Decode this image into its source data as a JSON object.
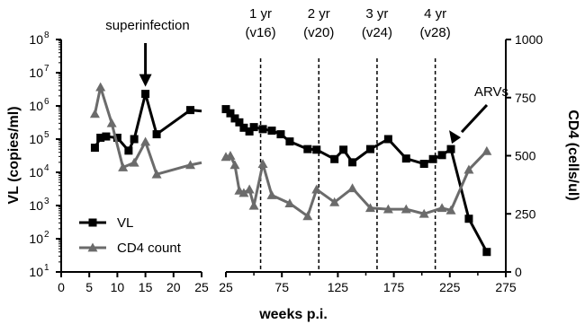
{
  "chart_data": {
    "type": "line",
    "xlabel": "weeks p.i.",
    "ylabel_left": "VL (copies/ml)",
    "ylabel_right": "CD4 (cells/ul)",
    "x_segment1": {
      "range": [
        0,
        25
      ],
      "ticks": [
        "0",
        "5",
        "10",
        "15",
        "20",
        "25"
      ]
    },
    "x_segment2": {
      "range": [
        25,
        275
      ],
      "ticks": [
        "25",
        "75",
        "125",
        "175",
        "225",
        "275"
      ]
    },
    "y_left": {
      "scale": "log",
      "range": [
        10,
        100000000
      ],
      "ticks": [
        "10",
        "10",
        "10",
        "10",
        "10",
        "10",
        "10",
        "10"
      ],
      "tick_exponents": [
        "1",
        "2",
        "3",
        "4",
        "5",
        "6",
        "7",
        "8"
      ]
    },
    "y_right": {
      "scale": "linear",
      "range": [
        0,
        1000
      ],
      "ticks": [
        "0",
        "250",
        "500",
        "750",
        "1000"
      ]
    },
    "series": [
      {
        "name": "VL",
        "marker": "square",
        "color": "#000000",
        "axis": "left",
        "segment1": {
          "x": [
            6,
            7,
            8,
            10,
            12,
            13,
            15,
            17,
            23
          ],
          "y": [
            55000,
            110000,
            120000,
            110000,
            45000,
            100000,
            2300000,
            140000,
            750000
          ]
        },
        "segment1_tail_x": 25,
        "segment1_tail_y": 700000,
        "segment2": {
          "x": [
            25,
            29,
            33,
            37,
            41,
            46,
            50,
            58,
            66,
            74,
            82,
            98,
            106,
            122,
            130,
            138,
            154,
            170,
            186,
            202,
            210,
            218,
            226,
            242,
            258
          ],
          "y": [
            800000,
            600000,
            420000,
            320000,
            220000,
            170000,
            230000,
            200000,
            180000,
            140000,
            85000,
            50000,
            48000,
            25000,
            48000,
            20000,
            50000,
            100000,
            26000,
            18000,
            25000,
            33000,
            50000,
            400,
            40
          ]
        }
      },
      {
        "name": "CD4 count",
        "marker": "triangle",
        "color": "#6b6b6b",
        "axis": "right",
        "segment1": {
          "x": [
            6,
            7,
            9,
            11,
            13,
            15,
            17,
            23
          ],
          "y": [
            680,
            795,
            640,
            450,
            470,
            560,
            420,
            460
          ]
        },
        "segment1_tail_x": 25,
        "segment1_tail_y": 470,
        "segment2": {
          "x": [
            25,
            29,
            33,
            37,
            41,
            46,
            50,
            58,
            66,
            82,
            98,
            106,
            122,
            138,
            154,
            170,
            186,
            202,
            218,
            226,
            242,
            258
          ],
          "y": [
            495,
            500,
            460,
            350,
            340,
            355,
            285,
            465,
            330,
            295,
            240,
            355,
            300,
            360,
            275,
            270,
            270,
            250,
            275,
            265,
            440,
            520
          ]
        }
      }
    ],
    "reference_lines": [
      {
        "x": 56,
        "label_top": "1 yr",
        "label_bottom": "(v16)"
      },
      {
        "x": 108,
        "label_top": "2 yr",
        "label_bottom": "(v20)"
      },
      {
        "x": 160,
        "label_top": "3 yr",
        "label_bottom": "(v24)"
      },
      {
        "x": 212,
        "label_top": "4 yr",
        "label_bottom": "(v28)"
      }
    ],
    "annotations": [
      {
        "text": "superinfection",
        "x": 15,
        "y": 2300000,
        "segment": 1
      },
      {
        "text": "ARVs",
        "x": 226,
        "y": 50000,
        "segment": 2
      }
    ],
    "legend": {
      "placement": "bottom-left",
      "entries": [
        "VL",
        "CD4 count"
      ]
    }
  }
}
